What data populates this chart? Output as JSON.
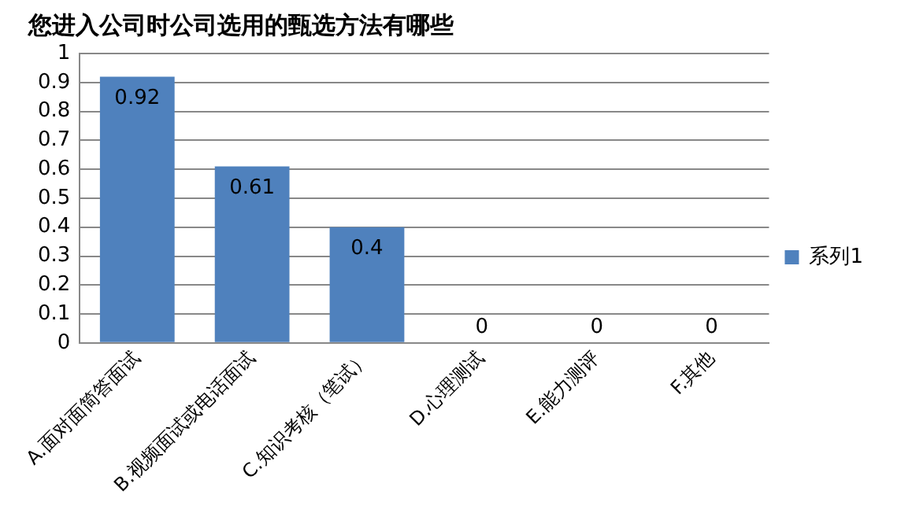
{
  "chart_data": {
    "type": "bar",
    "title": "您进入公司时公司选用的甄选方法有哪些",
    "categories": [
      "A.面对面简答面试",
      "B.视频面试或电话面试",
      "C.知识考核（笔试）",
      "D.心理测试",
      "E.能力测评",
      "F.其他"
    ],
    "series": [
      {
        "name": "系列1",
        "color": "#4f81bd",
        "values": [
          0.92,
          0.61,
          0.4,
          0,
          0,
          0
        ]
      }
    ],
    "ylim": [
      0,
      1
    ],
    "yticks": [
      0,
      0.1,
      0.2,
      0.3,
      0.4,
      0.5,
      0.6,
      0.7,
      0.8,
      0.9,
      1
    ],
    "grid": "y",
    "legend": "right",
    "data_labels": true
  }
}
